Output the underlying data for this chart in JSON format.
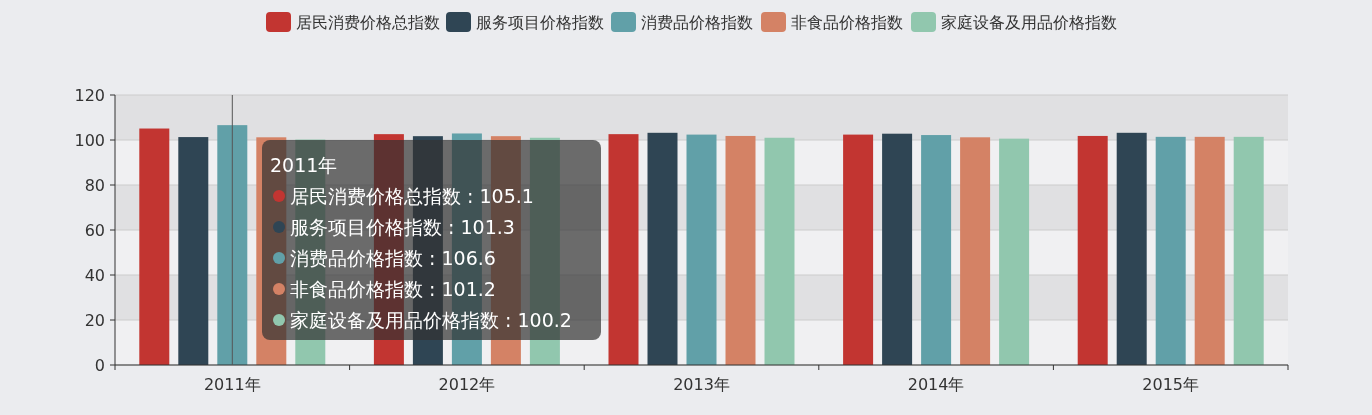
{
  "chart_data": {
    "type": "bar",
    "categories": [
      "2011年",
      "2012年",
      "2013年",
      "2014年",
      "2015年"
    ],
    "series": [
      {
        "name": "居民消费价格总指数",
        "color": "#c23531",
        "values": [
          105.1,
          102.6,
          102.6,
          102.4,
          101.8
        ]
      },
      {
        "name": "服务项目价格指数",
        "color": "#2f4554",
        "values": [
          101.3,
          101.7,
          103.2,
          102.8,
          103.2
        ]
      },
      {
        "name": "消费品价格指数",
        "color": "#61a0a8",
        "values": [
          106.6,
          102.9,
          102.4,
          102.2,
          101.4
        ]
      },
      {
        "name": "非食品价格指数",
        "color": "#d48265",
        "values": [
          101.2,
          101.7,
          101.8,
          101.2,
          101.4
        ]
      },
      {
        "name": "家庭设备及用品价格指数",
        "color": "#91c7ae",
        "values": [
          100.2,
          101.0,
          101.0,
          100.6,
          101.4
        ]
      }
    ],
    "ref_lines": [
      {
        "axis": "x",
        "value": "2011年",
        "color": "#555555"
      }
    ],
    "ylim": [
      0,
      120
    ],
    "yticks": [
      0,
      20,
      40,
      60,
      80,
      100,
      120
    ],
    "grid": "y",
    "legend": "top",
    "annotations": [
      "2011年",
      "居民消费价格总指数 : 105.1",
      "服务项目价格指数 : 101.3",
      "消费品价格指数 : 106.6",
      "非食品价格指数 : 101.2",
      "家庭设备及用品价格指数 : 100.2"
    ]
  }
}
